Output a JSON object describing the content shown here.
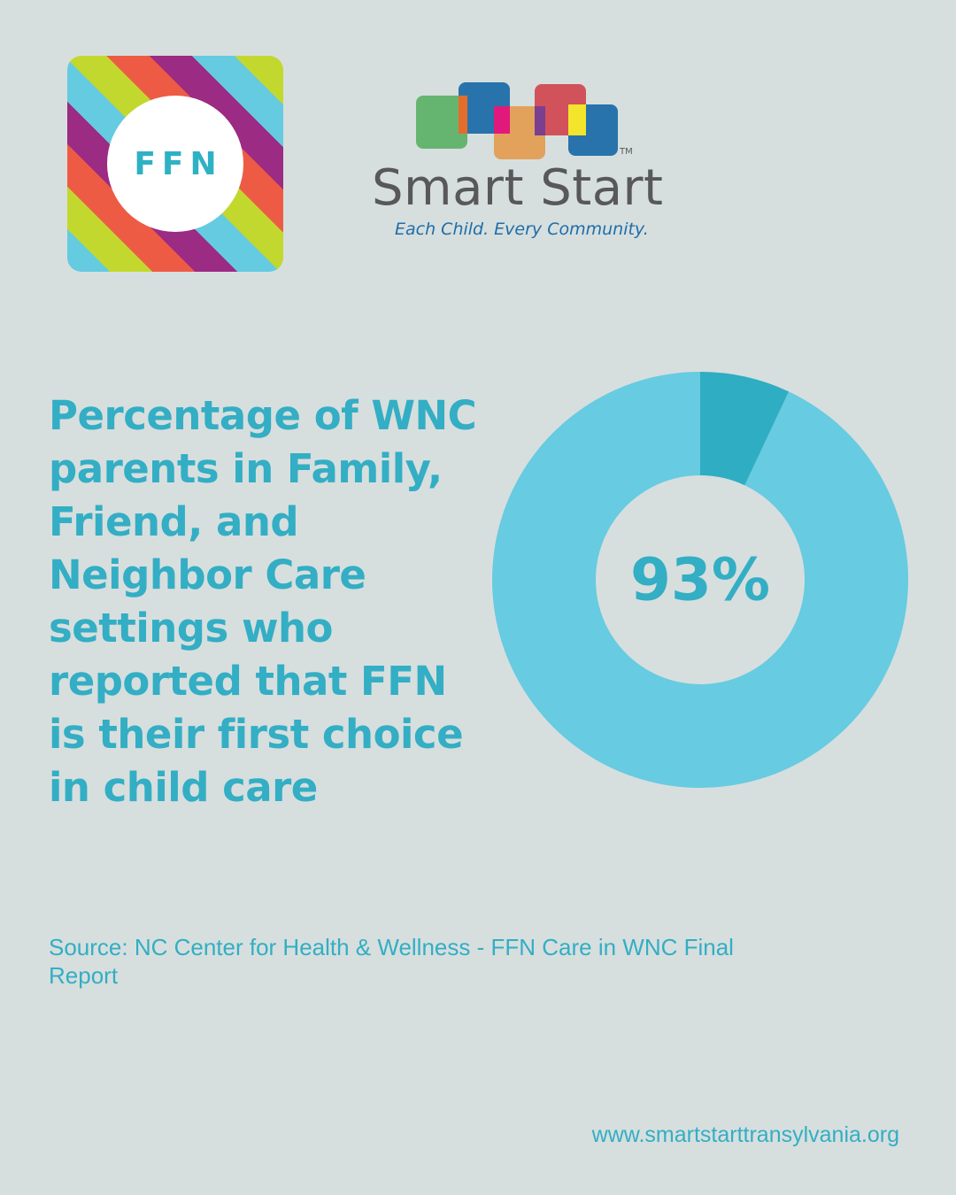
{
  "ffn_logo": {
    "text": "FFN",
    "stripe_colors": [
      "#64cbe0",
      "#c3d82e",
      "#ee5b45",
      "#9b2b83"
    ]
  },
  "smart_start_logo": {
    "name": "Smart Start",
    "trademark": "TM",
    "tagline": "Each Child. Every Community.",
    "square_colors": [
      "#5fb26a",
      "#1f6da8",
      "#e39c50",
      "#d0454f",
      "#1f6da8"
    ]
  },
  "headline": "Percentage of WNC parents in Family, Friend, and Neighbor Care settings who reported that FFN is their first choice in child care",
  "chart_data": {
    "type": "pie",
    "donut": true,
    "values": [
      93,
      7
    ],
    "center_label": "93%",
    "colors": [
      "#67cbe1",
      "#2fadc2"
    ]
  },
  "source": "Source: NC Center for Health & Wellness - FFN Care in WNC Final Report",
  "website": "www.smartstarttransylvania.org",
  "colors": {
    "background": "#d6dfde",
    "accent": "#33aec4"
  }
}
